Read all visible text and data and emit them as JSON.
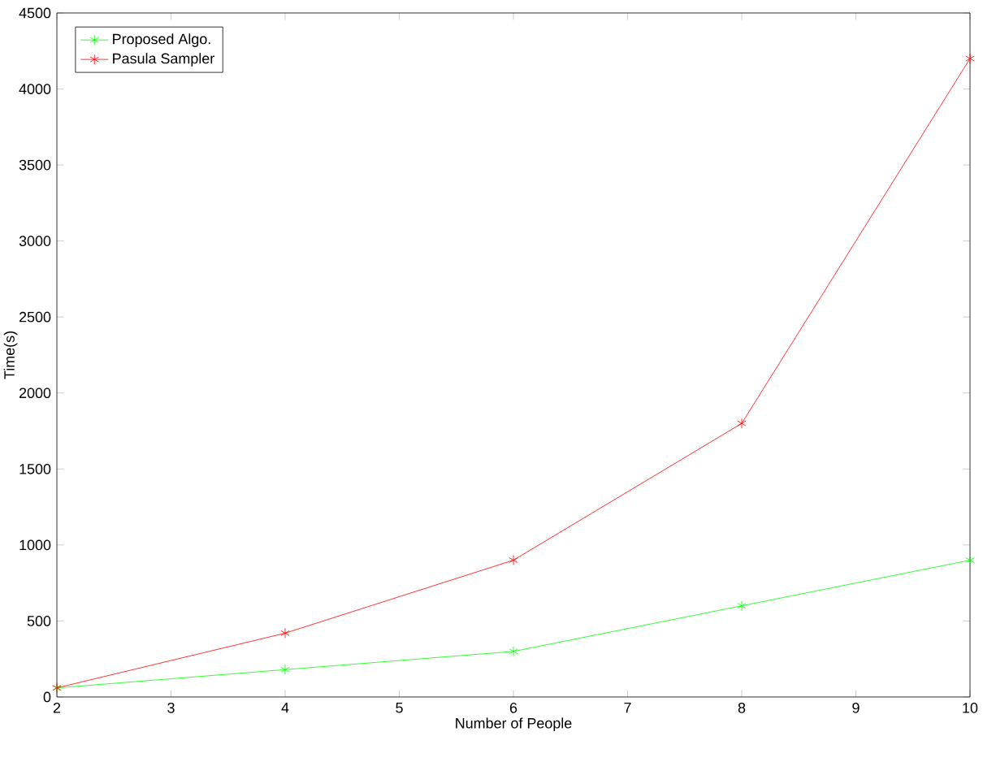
{
  "chart_data": {
    "type": "line",
    "xlabel": "Number of People",
    "ylabel": "Time(s)",
    "x": [
      2,
      4,
      6,
      8,
      10
    ],
    "series": [
      {
        "name": "Proposed Algo.",
        "color": "#00ff00",
        "values": [
          60,
          180,
          300,
          600,
          900
        ]
      },
      {
        "name": "Pasula Sampler",
        "color": "#ff0000",
        "values": [
          60,
          420,
          900,
          1800,
          4200
        ]
      }
    ],
    "xlim": [
      2,
      10
    ],
    "ylim": [
      0,
      4500
    ],
    "xticks": [
      2,
      3,
      4,
      5,
      6,
      7,
      8,
      9,
      10
    ],
    "yticks": [
      0,
      500,
      1000,
      1500,
      2000,
      2500,
      3000,
      3500,
      4000,
      4500
    ],
    "legend": "top left",
    "marker": "cross",
    "line_style": "solid",
    "grid": false
  }
}
